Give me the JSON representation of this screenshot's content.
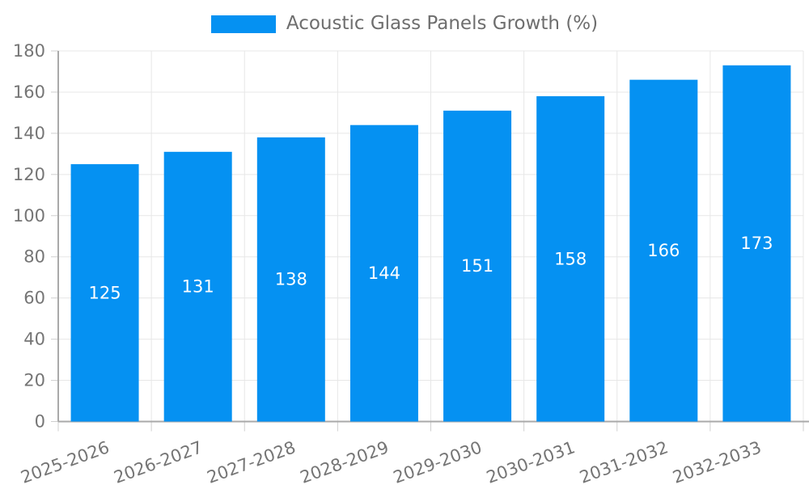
{
  "chart_data": {
    "type": "bar",
    "title": "",
    "legend": {
      "position": "top-center",
      "label": "Acoustic Glass Panels Growth (%)"
    },
    "series": [
      {
        "name": "Acoustic Glass Panels Growth (%)",
        "values": [
          125,
          131,
          138,
          144,
          151,
          158,
          166,
          173
        ]
      }
    ],
    "categories": [
      "2025-2026",
      "2026-2027",
      "2027-2028",
      "2028-2029",
      "2029-2030",
      "2030-2031",
      "2031-2032",
      "2032-2033"
    ],
    "value_labels_shown": true,
    "xlabel": "",
    "ylabel": "",
    "ylim": [
      0,
      180
    ],
    "ytick_step": 20,
    "yticks": [
      0,
      20,
      40,
      60,
      80,
      100,
      120,
      140,
      160,
      180
    ],
    "grid": true,
    "x_label_rotation_deg": -20,
    "colors": {
      "bar": "#0591F2",
      "value_label": "#FFFFFF",
      "axis_tick_text": "#757575",
      "legend_text": "#6E6E6E",
      "grid_line": "#E7E7E7",
      "axis_line": "#A9A9A9",
      "tick_mark": "#CFCFCF",
      "background": "#FFFFFF"
    }
  }
}
